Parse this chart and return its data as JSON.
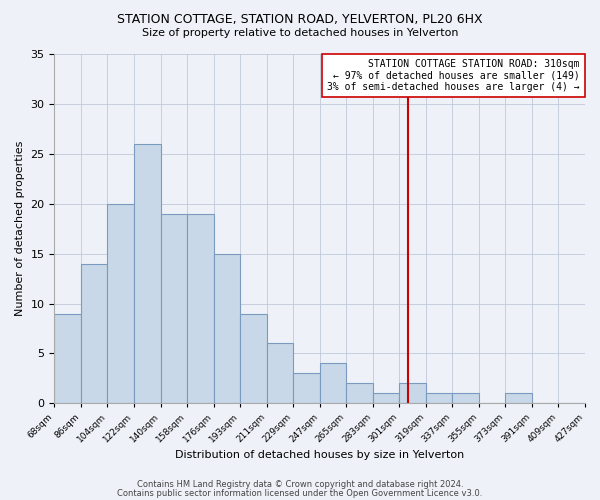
{
  "title": "STATION COTTAGE, STATION ROAD, YELVERTON, PL20 6HX",
  "subtitle": "Size of property relative to detached houses in Yelverton",
  "xlabel": "Distribution of detached houses by size in Yelverton",
  "ylabel": "Number of detached properties",
  "bin_labels": [
    "68sqm",
    "86sqm",
    "104sqm",
    "122sqm",
    "140sqm",
    "158sqm",
    "176sqm",
    "193sqm",
    "211sqm",
    "229sqm",
    "247sqm",
    "265sqm",
    "283sqm",
    "301sqm",
    "319sqm",
    "337sqm",
    "355sqm",
    "373sqm",
    "391sqm",
    "409sqm",
    "427sqm"
  ],
  "bar_values": [
    9,
    14,
    20,
    26,
    19,
    19,
    15,
    9,
    6,
    3,
    4,
    2,
    1,
    2,
    1,
    1,
    0,
    1,
    0,
    0
  ],
  "bar_color": "#c8d8e8",
  "bar_edge_color": "#7a9abf",
  "grid_color": "#c0c8d8",
  "bg_color": "#eef2f8",
  "vline_index": 13.33,
  "vline_color": "#cc0000",
  "annotation_line1": "STATION COTTAGE STATION ROAD: 310sqm",
  "annotation_line2": "← 97% of detached houses are smaller (149)",
  "annotation_line3": "3% of semi-detached houses are larger (4) →",
  "annotation_box_color": "#ffffff",
  "annotation_box_edge": "#cc0000",
  "ylim": [
    0,
    35
  ],
  "yticks": [
    0,
    5,
    10,
    15,
    20,
    25,
    30,
    35
  ],
  "footer_line1": "Contains HM Land Registry data © Crown copyright and database right 2024.",
  "footer_line2": "Contains public sector information licensed under the Open Government Licence v3.0."
}
